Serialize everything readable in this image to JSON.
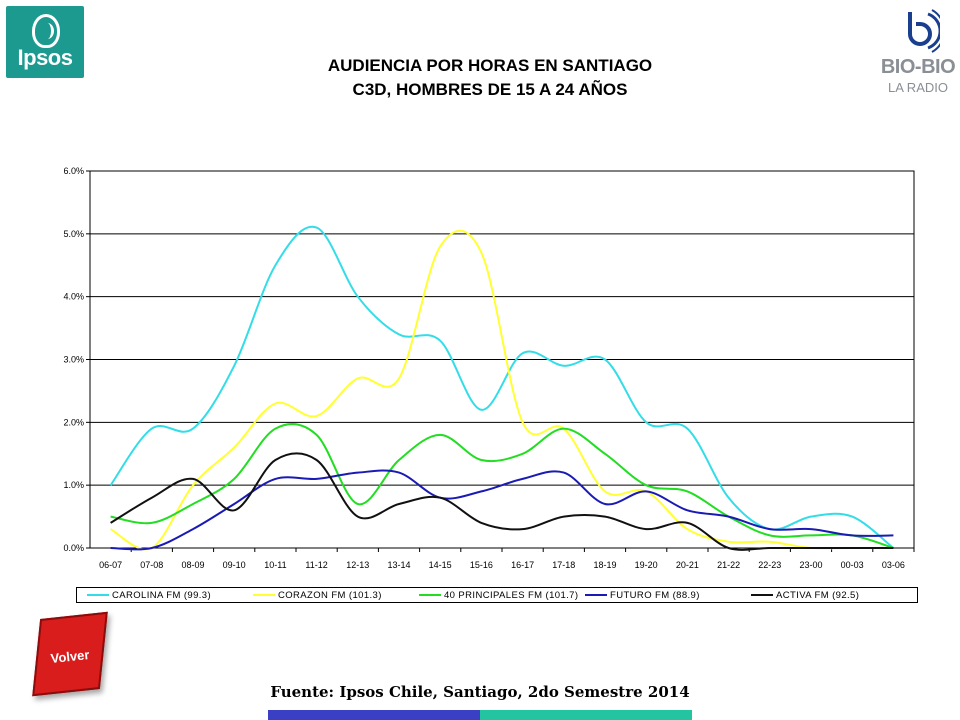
{
  "header": {
    "ipsos_logo_text": "Ipsos",
    "biobio_logo_text": "BIO-BIO",
    "biobio_logo_sub": "LA RADIO",
    "title_line1": "AUDIENCIA POR HORAS EN SANTIAGO",
    "title_line2": "C3D, HOMBRES DE 15 A 24 AÑOS"
  },
  "chart_data": {
    "type": "line",
    "title": "AUDIENCIA POR HORAS EN SANTIAGO C3D, HOMBRES DE 15 A 24 AÑOS",
    "xlabel": "",
    "ylabel": "",
    "ylim": [
      0,
      6
    ],
    "y_ticks": [
      "0.0%",
      "1.0%",
      "2.0%",
      "3.0%",
      "4.0%",
      "5.0%",
      "6.0%"
    ],
    "grid": true,
    "legend_position": "bottom",
    "categories": [
      "06-07",
      "07-08",
      "08-09",
      "09-10",
      "10-11",
      "11-12",
      "12-13",
      "13-14",
      "14-15",
      "15-16",
      "16-17",
      "17-18",
      "18-19",
      "19-20",
      "20-21",
      "21-22",
      "22-23",
      "23-00",
      "00-03",
      "03-06"
    ],
    "series": [
      {
        "name": "CAROLINA FM (99.3)",
        "color": "#33dde8",
        "values": [
          1.0,
          1.9,
          1.9,
          2.9,
          4.5,
          5.1,
          4.0,
          3.4,
          3.3,
          2.2,
          3.1,
          2.9,
          3.0,
          2.0,
          1.9,
          0.8,
          0.3,
          0.5,
          0.5,
          0.0
        ]
      },
      {
        "name": "CORAZON FM (101.3)",
        "color": "#ffff33",
        "values": [
          0.3,
          0.0,
          1.0,
          1.6,
          2.3,
          2.1,
          2.7,
          2.7,
          4.8,
          4.7,
          2.0,
          1.9,
          0.9,
          0.9,
          0.3,
          0.1,
          0.1,
          0.0,
          0.0,
          0.0
        ]
      },
      {
        "name": "40 PRINCIPALES FM (101.7)",
        "color": "#22dd22",
        "values": [
          0.5,
          0.4,
          0.7,
          1.1,
          1.9,
          1.8,
          0.7,
          1.4,
          1.8,
          1.4,
          1.5,
          1.9,
          1.5,
          1.0,
          0.9,
          0.5,
          0.2,
          0.2,
          0.2,
          0.0
        ]
      },
      {
        "name": "FUTURO FM (88.9)",
        "color": "#1a1ab4",
        "values": [
          0.0,
          0.0,
          0.3,
          0.7,
          1.1,
          1.1,
          1.2,
          1.2,
          0.8,
          0.9,
          1.1,
          1.2,
          0.7,
          0.9,
          0.6,
          0.5,
          0.3,
          0.3,
          0.2,
          0.2
        ]
      },
      {
        "name": "ACTIVA  FM (92.5)",
        "color": "#111111",
        "values": [
          0.4,
          0.8,
          1.1,
          0.6,
          1.4,
          1.4,
          0.5,
          0.7,
          0.8,
          0.4,
          0.3,
          0.5,
          0.5,
          0.3,
          0.4,
          0.0,
          0.0,
          0.0,
          0.0,
          0.0
        ]
      }
    ]
  },
  "footer": {
    "volver_label": "Volver",
    "source": "Fuente: Ipsos Chile, Santiago, 2do Semestre 2014"
  }
}
